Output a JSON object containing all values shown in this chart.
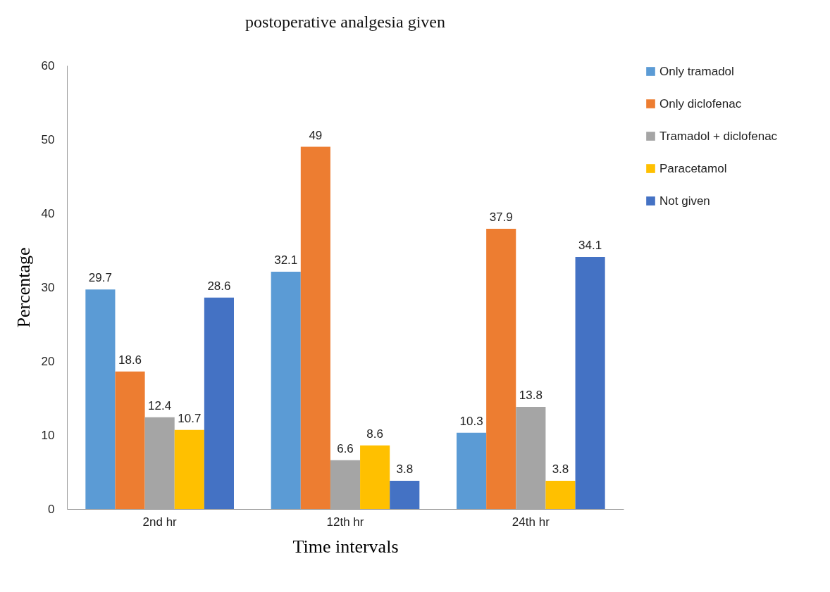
{
  "chart_data": {
    "type": "bar",
    "title": "postoperative analgesia given",
    "xlabel": "Time intervals",
    "ylabel": "Percentage",
    "categories": [
      "2nd hr",
      "12th hr",
      "24th hr"
    ],
    "series": [
      {
        "name": "Only tramadol",
        "color": "#5b9bd5",
        "values": [
          29.7,
          32.1,
          10.3
        ]
      },
      {
        "name": "Only diclofenac",
        "color": "#ed7d31",
        "values": [
          18.6,
          49,
          37.9
        ]
      },
      {
        "name": "Tramadol + diclofenac",
        "color": "#a5a5a5",
        "values": [
          12.4,
          6.6,
          13.8
        ]
      },
      {
        "name": "Paracetamol",
        "color": "#ffc000",
        "values": [
          10.7,
          8.6,
          3.8
        ]
      },
      {
        "name": "Not given",
        "color": "#4472c4",
        "values": [
          28.6,
          3.8,
          34.1
        ]
      }
    ],
    "ylim": [
      0,
      60
    ],
    "yticks": [
      0,
      10,
      20,
      30,
      40,
      50,
      60
    ],
    "grid": false,
    "legend": "right",
    "data_labels": true
  }
}
